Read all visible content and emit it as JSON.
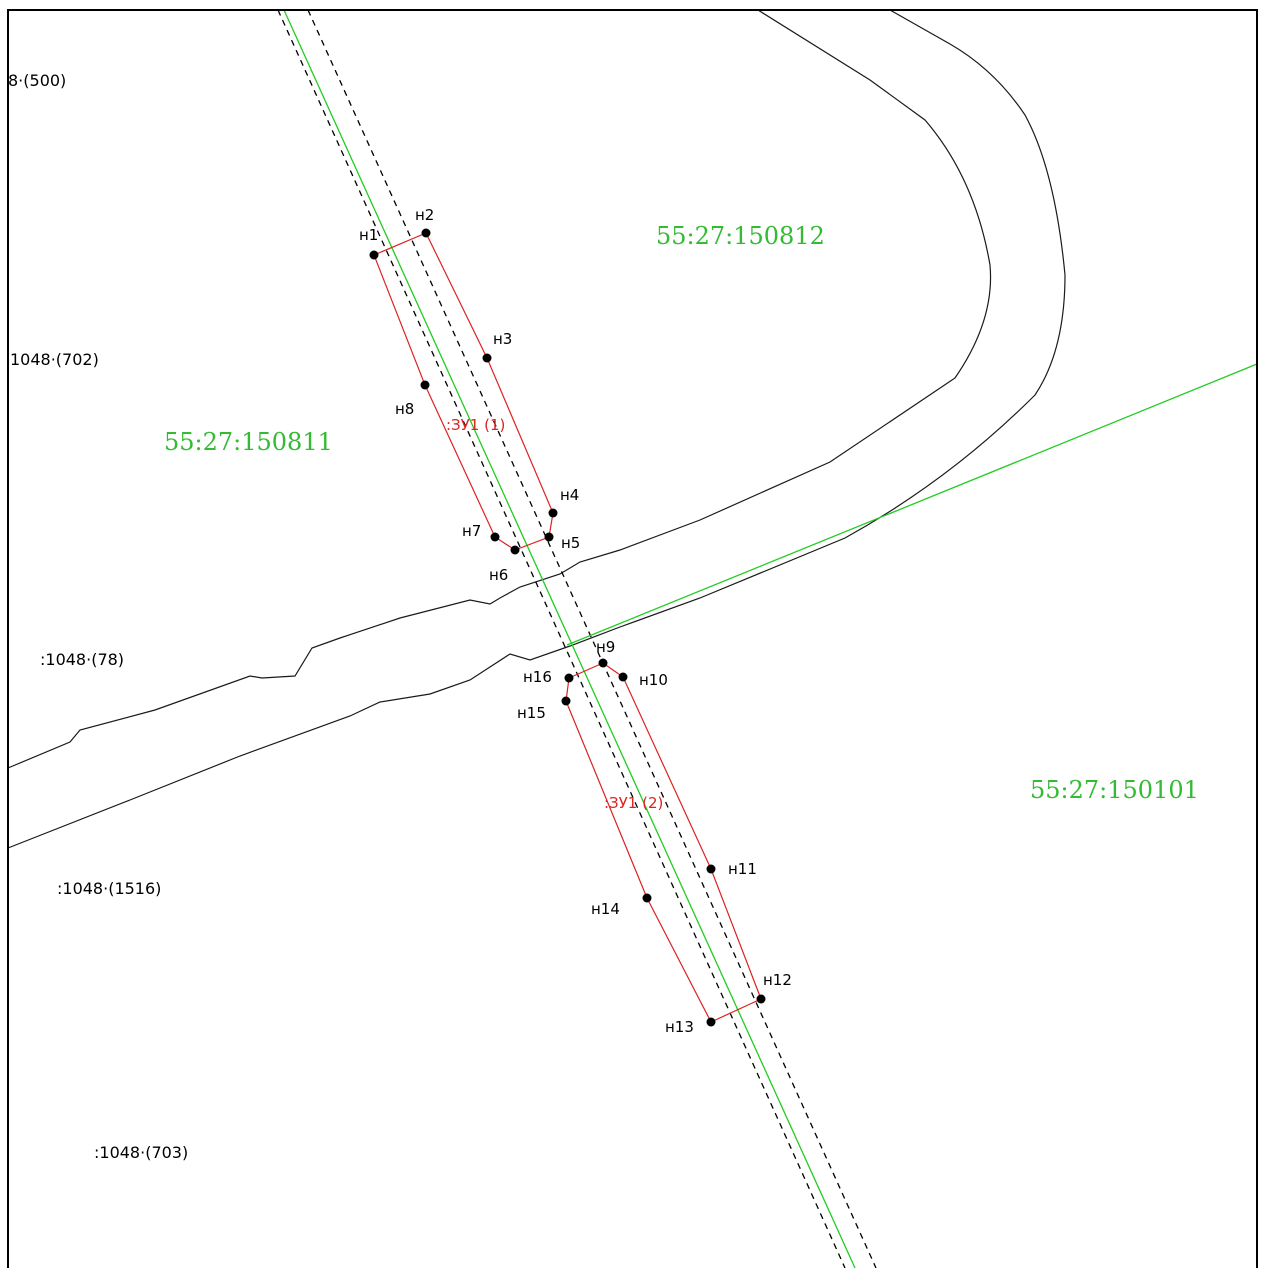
{
  "quarters": [
    {
      "id": "q1",
      "label": "55:27:150812"
    },
    {
      "id": "q2",
      "label": "55:27:150811"
    },
    {
      "id": "q3",
      "label": "55:27:150101"
    }
  ],
  "neighbor_parcels": [
    {
      "id": "p500",
      "label": "8·(500)"
    },
    {
      "id": "p702",
      "label": "1048·(702)"
    },
    {
      "id": "p78",
      "label": ":1048·(78)"
    },
    {
      "id": "p1516",
      "label": ":1048·(1516)"
    },
    {
      "id": "p703",
      "label": ":1048·(703)"
    }
  ],
  "plots": [
    {
      "id": "zu1-1",
      "label": ":ЗУ1 (1)"
    },
    {
      "id": "zu1-2",
      "label": ":ЗУ1 (2)"
    }
  ],
  "vertices": [
    {
      "id": "n1",
      "label": "н1"
    },
    {
      "id": "n2",
      "label": "н2"
    },
    {
      "id": "n3",
      "label": "н3"
    },
    {
      "id": "n4",
      "label": "н4"
    },
    {
      "id": "n5",
      "label": "н5"
    },
    {
      "id": "n6",
      "label": "н6"
    },
    {
      "id": "n7",
      "label": "н7"
    },
    {
      "id": "n8",
      "label": "н8"
    },
    {
      "id": "n9",
      "label": "н9"
    },
    {
      "id": "n10",
      "label": "н10"
    },
    {
      "id": "n11",
      "label": "н11"
    },
    {
      "id": "n12",
      "label": "н12"
    },
    {
      "id": "n13",
      "label": "н13"
    },
    {
      "id": "n14",
      "label": "н14"
    },
    {
      "id": "n15",
      "label": "н15"
    },
    {
      "id": "n16",
      "label": "н16"
    }
  ],
  "colors": {
    "quarter_boundary": "#22cc22",
    "plot_boundary": "#dd2222",
    "road": "#1a1a1a"
  }
}
